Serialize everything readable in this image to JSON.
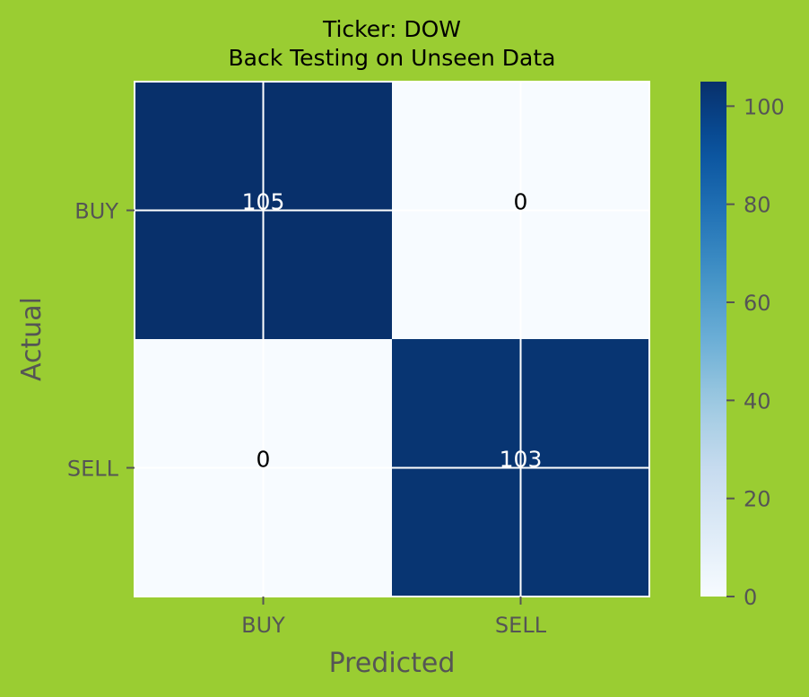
{
  "colors": {
    "background": "#9acd32",
    "cmap_low": "#f7fbff",
    "cmap_high": "#08306b",
    "axis_text": "#555555",
    "title_text": "#000000"
  },
  "chart_data": {
    "type": "heatmap",
    "title": "Ticker: DOW",
    "subtitle": "Back Testing on Unseen Data",
    "xlabel": "Predicted",
    "ylabel": "Actual",
    "x_categories": [
      "BUY",
      "SELL"
    ],
    "y_categories": [
      "BUY",
      "SELL"
    ],
    "values": [
      [
        105,
        0
      ],
      [
        0,
        103
      ]
    ],
    "value_labels": [
      [
        "105",
        "0"
      ],
      [
        "0",
        "103"
      ]
    ],
    "colorbar": {
      "range": [
        0,
        105
      ],
      "ticks": [
        0,
        20,
        40,
        60,
        80,
        100
      ],
      "tick_labels": [
        "0",
        "20",
        "40",
        "60",
        "80",
        "100"
      ]
    },
    "grid": true,
    "colormap": "Blues"
  }
}
